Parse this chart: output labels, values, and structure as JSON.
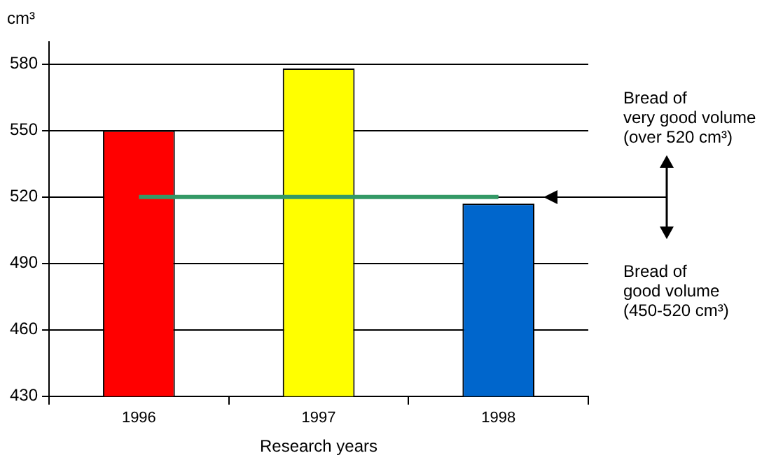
{
  "chart_data": {
    "type": "bar",
    "xlabel": "Research years",
    "ylabel": "cm³",
    "categories": [
      "1996",
      "1997",
      "1998"
    ],
    "series": [
      {
        "colors": [
          "#ff0000",
          "#ffff00",
          "#0066cc"
        ],
        "values": [
          550,
          578,
          517
        ]
      },
      {
        "type": "line",
        "color": "#339966",
        "values": [
          520,
          520,
          520
        ]
      }
    ],
    "ylim": [
      430,
      590
    ],
    "yticks": [
      430,
      460,
      490,
      520,
      550,
      580
    ],
    "grid": "y",
    "legend": false,
    "marker": "none",
    "annotations": [
      "Bread of\nvery good volume\n(over 520 cm³)",
      "Bread of\ngood volume\n(450-520 cm³)"
    ]
  }
}
